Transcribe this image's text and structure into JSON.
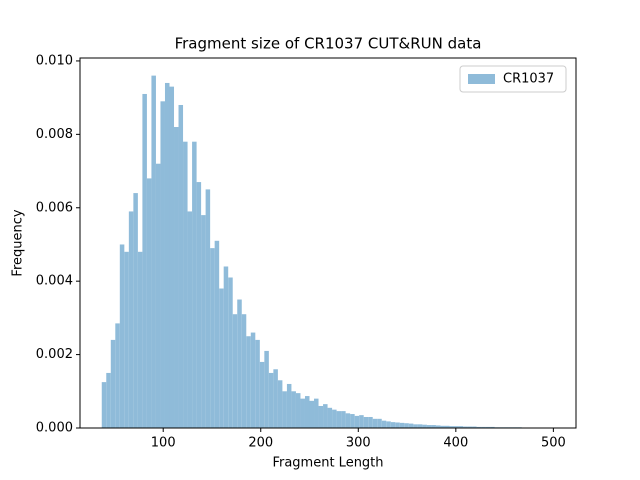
{
  "chart_data": {
    "type": "histogram",
    "title": "Fragment size of CR1037 CUT&RUN data",
    "x_label": "Fragment Length",
    "y_label": "Frequency",
    "series": [
      {
        "name": "CR1037",
        "color": "#8fbbd9",
        "bins": [
          37,
          41.63,
          46.26,
          50.89,
          55.52,
          60.15,
          64.78,
          69.41,
          74.04,
          78.67,
          83.3,
          87.93,
          92.56,
          97.19,
          101.82,
          106.45,
          111.08,
          115.71,
          120.34,
          124.97,
          129.6,
          134.23,
          138.86,
          143.49,
          148.12,
          152.75,
          157.38,
          162.01,
          166.64,
          171.27,
          175.9,
          180.53,
          185.16,
          189.79,
          194.42,
          199.05,
          203.68,
          208.31,
          212.94,
          217.57,
          222.2,
          226.83,
          231.46,
          236.09,
          240.72,
          245.35,
          249.98,
          254.61,
          259.24,
          263.87,
          268.5,
          273.13,
          277.76,
          282.39,
          287.02,
          291.65,
          296.28,
          300.91,
          305.54,
          310.17,
          314.8,
          319.43,
          324.06,
          328.69,
          333.32,
          337.95,
          342.58,
          347.21,
          351.84,
          356.47,
          361.1,
          365.73,
          370.36,
          374.99,
          379.62,
          384.25,
          388.88,
          393.51,
          398.14,
          402.77,
          407.4,
          412.03,
          416.66,
          421.29,
          425.92,
          430.55,
          435.18,
          439.81,
          444.44,
          449.07,
          453.7,
          458.33,
          462.96,
          467.59,
          472.22,
          476.85,
          481.48,
          486.11,
          490.74,
          495.37,
          500
        ],
        "values": [
          0.00125,
          0.0015,
          0.0024,
          0.00285,
          0.005,
          0.0048,
          0.0059,
          0.0064,
          0.0048,
          0.0091,
          0.0068,
          0.0096,
          0.0072,
          0.0089,
          0.0094,
          0.0093,
          0.0082,
          0.0088,
          0.0078,
          0.0059,
          0.0078,
          0.0067,
          0.0058,
          0.0065,
          0.0049,
          0.0051,
          0.0038,
          0.0044,
          0.0041,
          0.0031,
          0.0035,
          0.0031,
          0.0025,
          0.0026,
          0.0024,
          0.0018,
          0.0021,
          0.0015,
          0.0016,
          0.0013,
          0.001,
          0.0012,
          0.001,
          0.00095,
          0.0008,
          0.00087,
          0.00074,
          0.0008,
          0.0006,
          0.00065,
          0.00055,
          0.0005,
          0.00046,
          0.00046,
          0.0004,
          0.00038,
          0.00033,
          0.00035,
          0.0003,
          0.0003,
          0.00025,
          0.00025,
          0.0002,
          0.00018,
          0.00016,
          0.00015,
          0.00014,
          0.00013,
          0.00012,
          0.0001,
          0.0001,
          9e-05,
          8e-05,
          8e-05,
          7e-05,
          6e-05,
          6e-05,
          5e-05,
          5e-05,
          5e-05,
          4e-05,
          4e-05,
          4e-05,
          3e-05,
          3e-05,
          3e-05,
          3e-05,
          2e-05,
          2e-05,
          2e-05,
          2e-05,
          2e-05,
          2e-05,
          1e-05,
          1e-05,
          1e-05,
          1e-05,
          1e-05,
          1e-05,
          1e-05
        ]
      }
    ],
    "xlim": [
      14.7,
      523.2
    ],
    "xticks": [
      100,
      200,
      300,
      400,
      500
    ],
    "ylim": [
      0,
      0.01008
    ],
    "yticks": [
      {
        "value": 0,
        "label": "0.000"
      },
      {
        "value": 0.002,
        "label": "0.002"
      },
      {
        "value": 0.004,
        "label": "0.004"
      },
      {
        "value": 0.006,
        "label": "0.006"
      },
      {
        "value": 0.008,
        "label": "0.008"
      },
      {
        "value": 0.01,
        "label": "0.010"
      }
    ],
    "legend": "upper right"
  }
}
